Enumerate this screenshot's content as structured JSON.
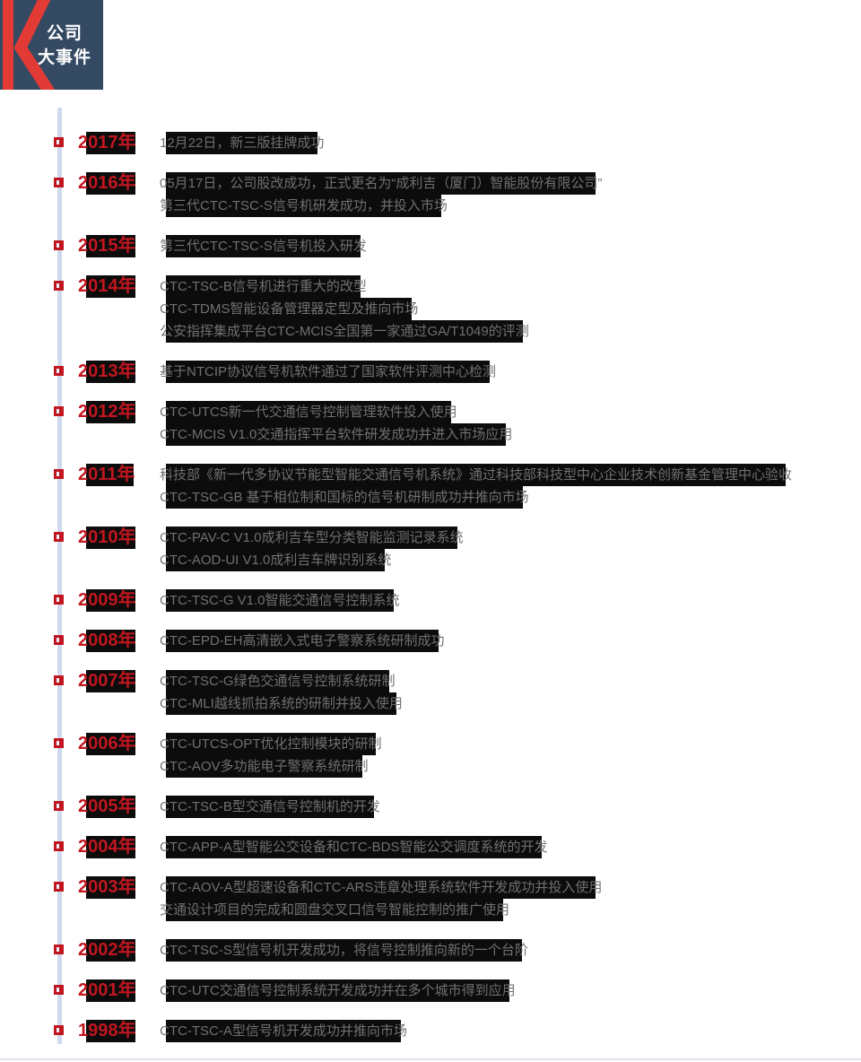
{
  "badge": {
    "line1": "公司",
    "line2": "大事件"
  },
  "colors": {
    "accent_red": "#c1161f",
    "logo_red": "#e23a34",
    "badge_navy": "#344a63",
    "line_blue": "#cfdaee",
    "highlight_black": "#0c0c0c",
    "event_gray": "#707070"
  },
  "timeline": [
    {
      "year": "2017年",
      "events": [
        "12月22日，新三版挂牌成功"
      ]
    },
    {
      "year": "2016年",
      "events": [
        "05月17日，公司股改成功，正式更名为“成利吉（厦门）智能股份有限公司”",
        "第三代CTC-TSC-S信号机研发成功，并投入市场"
      ]
    },
    {
      "year": "2015年",
      "events": [
        "第三代CTC-TSC-S信号机投入研发"
      ]
    },
    {
      "year": "2014年",
      "events": [
        "CTC-TSC-B信号机进行重大的改型",
        "CTC-TDMS智能设备管理器定型及推向市场",
        "公安指挥集成平台CTC-MCIS全国第一家通过GA/T1049的评测"
      ]
    },
    {
      "year": "2013年",
      "events": [
        "基于NTCIP协议信号机软件通过了国家软件评测中心检测"
      ]
    },
    {
      "year": "2012年",
      "events": [
        "CTC-UTCS新一代交通信号控制管理软件投入使用",
        "CTC-MCIS V1.0交通指挥平台软件研发成功并进入市场应用"
      ]
    },
    {
      "year": "2011年",
      "events": [
        "科技部《新一代多协议节能型智能交通信号机系统》通过科技部科技型中心企业技术创新基金管理中心验收",
        "CTC-TSC-GB 基于相位制和国标的信号机研制成功并推向市场"
      ]
    },
    {
      "year": "2010年",
      "events": [
        "CTC-PAV-C V1.0成利吉车型分类智能监测记录系统",
        "CTC-AOD-UI V1.0成利吉车牌识别系统"
      ]
    },
    {
      "year": "2009年",
      "events": [
        "CTC-TSC-G V1.0智能交通信号控制系统"
      ]
    },
    {
      "year": "2008年",
      "events": [
        "CTC-EPD-EH高清嵌入式电子警察系统研制成功"
      ]
    },
    {
      "year": "2007年",
      "events": [
        "CTC-TSC-G绿色交通信号控制系统研制",
        "CTC-MLI越线抓拍系统的研制并投入使用"
      ]
    },
    {
      "year": "2006年",
      "events": [
        "CTC-UTCS-OPT优化控制模块的研制",
        "CTC-AOV多功能电子警察系统研制"
      ]
    },
    {
      "year": "2005年",
      "events": [
        "CTC-TSC-B型交通信号控制机的开发"
      ]
    },
    {
      "year": "2004年",
      "events": [
        "CTC-APP-A型智能公交设备和CTC-BDS智能公交调度系统的开发"
      ]
    },
    {
      "year": "2003年",
      "events": [
        "CTC-AOV-A型超速设备和CTC-ARS违章处理系统软件开发成功并投入使用",
        "交通设计项目的完成和圆盘交叉口信号智能控制的推广使用"
      ]
    },
    {
      "year": "2002年",
      "events": [
        "CTC-TSC-S型信号机开发成功，将信号控制推向新的一个台阶"
      ]
    },
    {
      "year": "2001年",
      "events": [
        "CTC-UTC交通信号控制系统开发成功并在多个城市得到应用"
      ]
    },
    {
      "year": "1998年",
      "events": [
        "CTC-TSC-A型信号机开发成功并推向市场"
      ]
    }
  ]
}
